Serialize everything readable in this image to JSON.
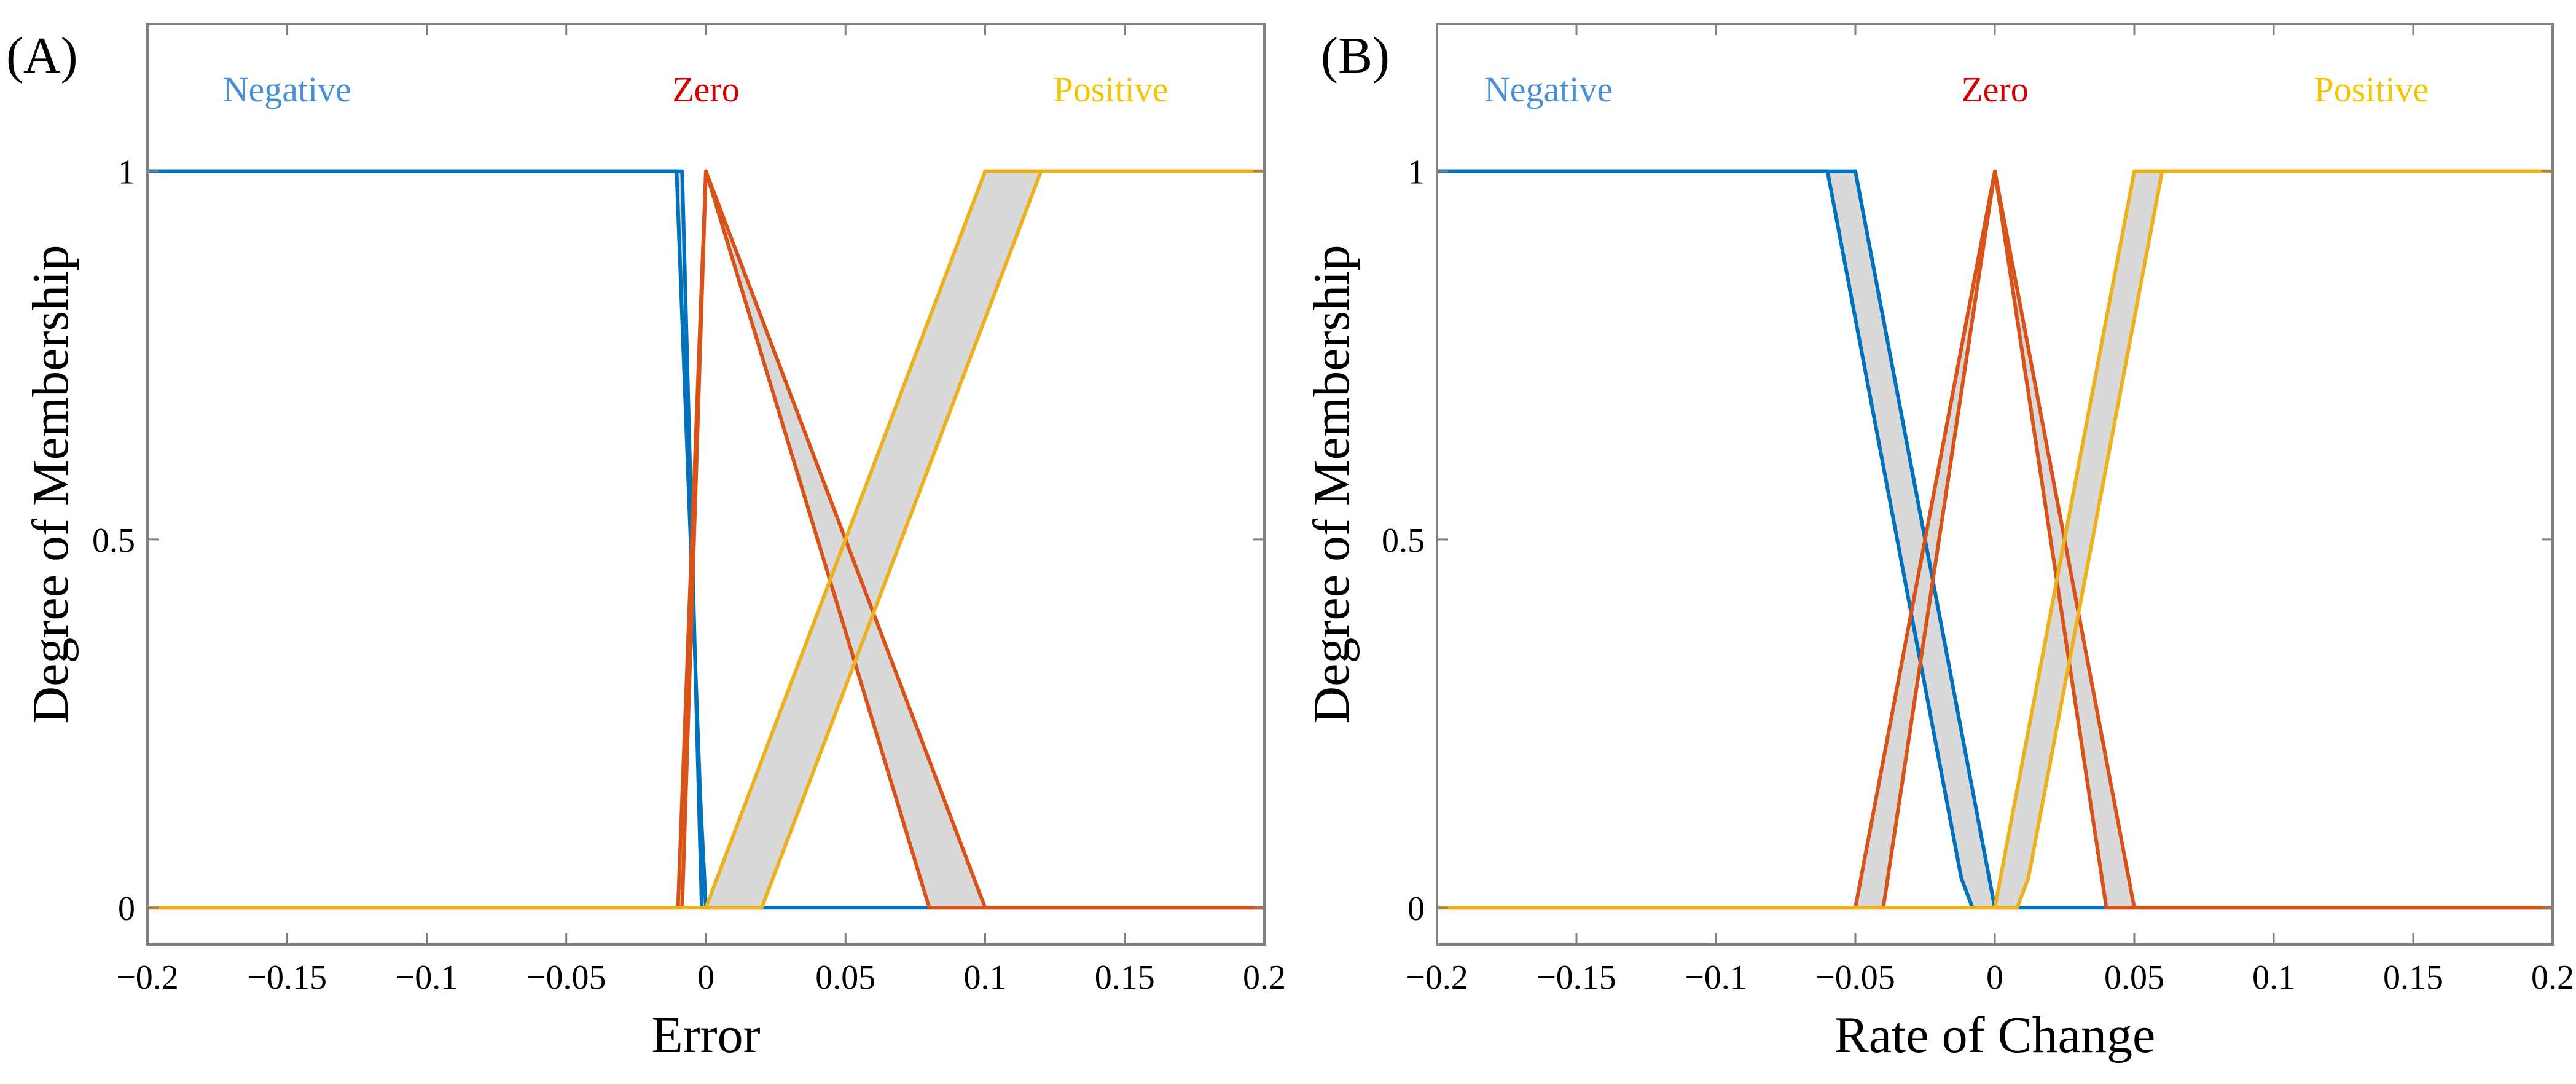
{
  "chart_data": [
    {
      "type": "line",
      "panel_label": "(A)",
      "xlabel": "Error",
      "ylabel": "Degree of Membership",
      "xlim": [
        -0.2,
        0.2
      ],
      "ylim": [
        -0.05,
        1.2
      ],
      "xticks": [
        -0.2,
        -0.15,
        -0.1,
        -0.05,
        0,
        0.05,
        0.1,
        0.15,
        0.2
      ],
      "xtick_labels": [
        "−0.2",
        "−0.15",
        "−0.1",
        "−0.05",
        "0",
        "0.05",
        "0.1",
        "0.15",
        "0.2"
      ],
      "yticks": [
        0,
        0.5,
        1
      ],
      "ytick_labels": [
        "0",
        "0.5",
        "1"
      ],
      "grid": false,
      "series": [
        {
          "name": "Negative",
          "color": "#0072BD",
          "label_color": "#4A90D9",
          "label_x": -0.15,
          "upper": [
            [
              -0.2,
              1
            ],
            [
              -0.0105,
              1
            ],
            [
              -0.002,
              0.15
            ],
            [
              0,
              0
            ],
            [
              0.2,
              0
            ]
          ],
          "lower": [
            [
              -0.2,
              1
            ],
            [
              -0.0085,
              1
            ],
            [
              -0.0015,
              0
            ],
            [
              0.2,
              0
            ]
          ]
        },
        {
          "name": "Zero",
          "color": "#D95319",
          "label_color": "#D40000",
          "label_x": 0,
          "upper": [
            [
              -0.2,
              0
            ],
            [
              -0.01,
              0
            ],
            [
              0,
              1
            ],
            [
              0.1,
              0
            ],
            [
              0.2,
              0
            ]
          ],
          "lower": [
            [
              -0.2,
              0
            ],
            [
              -0.0085,
              0
            ],
            [
              0,
              1
            ],
            [
              0.08,
              0
            ],
            [
              0.2,
              0
            ]
          ]
        },
        {
          "name": "Positive",
          "color": "#EDB120",
          "label_color": "#F5C400",
          "label_x": 0.145,
          "upper": [
            [
              -0.2,
              0
            ],
            [
              0,
              0
            ],
            [
              0.1,
              1
            ],
            [
              0.2,
              1
            ]
          ],
          "lower": [
            [
              -0.2,
              0
            ],
            [
              0.02,
              0
            ],
            [
              0.12,
              1
            ],
            [
              0.2,
              1
            ]
          ]
        }
      ]
    },
    {
      "type": "line",
      "panel_label": "(B)",
      "xlabel": "Rate of Change",
      "ylabel": "Degree of Membership",
      "xlim": [
        -0.2,
        0.2
      ],
      "ylim": [
        -0.05,
        1.2
      ],
      "xticks": [
        -0.2,
        -0.15,
        -0.1,
        -0.05,
        0,
        0.05,
        0.1,
        0.15,
        0.2
      ],
      "xtick_labels": [
        "−0.2",
        "−0.15",
        "−0.1",
        "−0.05",
        "0",
        "0.05",
        "0.1",
        "0.15",
        "0.2"
      ],
      "yticks": [
        0,
        0.5,
        1
      ],
      "ytick_labels": [
        "0",
        "0.5",
        "1"
      ],
      "grid": false,
      "series": [
        {
          "name": "Negative",
          "color": "#0072BD",
          "label_color": "#4A90D9",
          "label_x": -0.16,
          "upper": [
            [
              -0.2,
              1
            ],
            [
              -0.06,
              1
            ],
            [
              -0.012,
              0.04
            ],
            [
              -0.008,
              0
            ],
            [
              0.2,
              0
            ]
          ],
          "lower": [
            [
              -0.2,
              1
            ],
            [
              -0.05,
              1
            ],
            [
              0,
              0
            ],
            [
              0.2,
              0
            ]
          ]
        },
        {
          "name": "Zero",
          "color": "#D95319",
          "label_color": "#D40000",
          "label_x": 0,
          "upper": [
            [
              -0.2,
              0
            ],
            [
              -0.05,
              0
            ],
            [
              0,
              1
            ],
            [
              0.05,
              0
            ],
            [
              0.2,
              0
            ]
          ],
          "lower": [
            [
              -0.2,
              0
            ],
            [
              -0.04,
              0
            ],
            [
              0,
              1
            ],
            [
              0.04,
              0
            ],
            [
              0.2,
              0
            ]
          ]
        },
        {
          "name": "Positive",
          "color": "#EDB120",
          "label_color": "#F5C400",
          "label_x": 0.135,
          "upper": [
            [
              -0.2,
              0
            ],
            [
              0,
              0
            ],
            [
              0.05,
              1
            ],
            [
              0.2,
              1
            ]
          ],
          "lower": [
            [
              -0.2,
              0
            ],
            [
              0.008,
              0
            ],
            [
              0.012,
              0.04
            ],
            [
              0.06,
              1
            ],
            [
              0.2,
              1
            ]
          ]
        }
      ]
    }
  ],
  "fill_color": "#D9D9D9",
  "axis_color": "#808080"
}
